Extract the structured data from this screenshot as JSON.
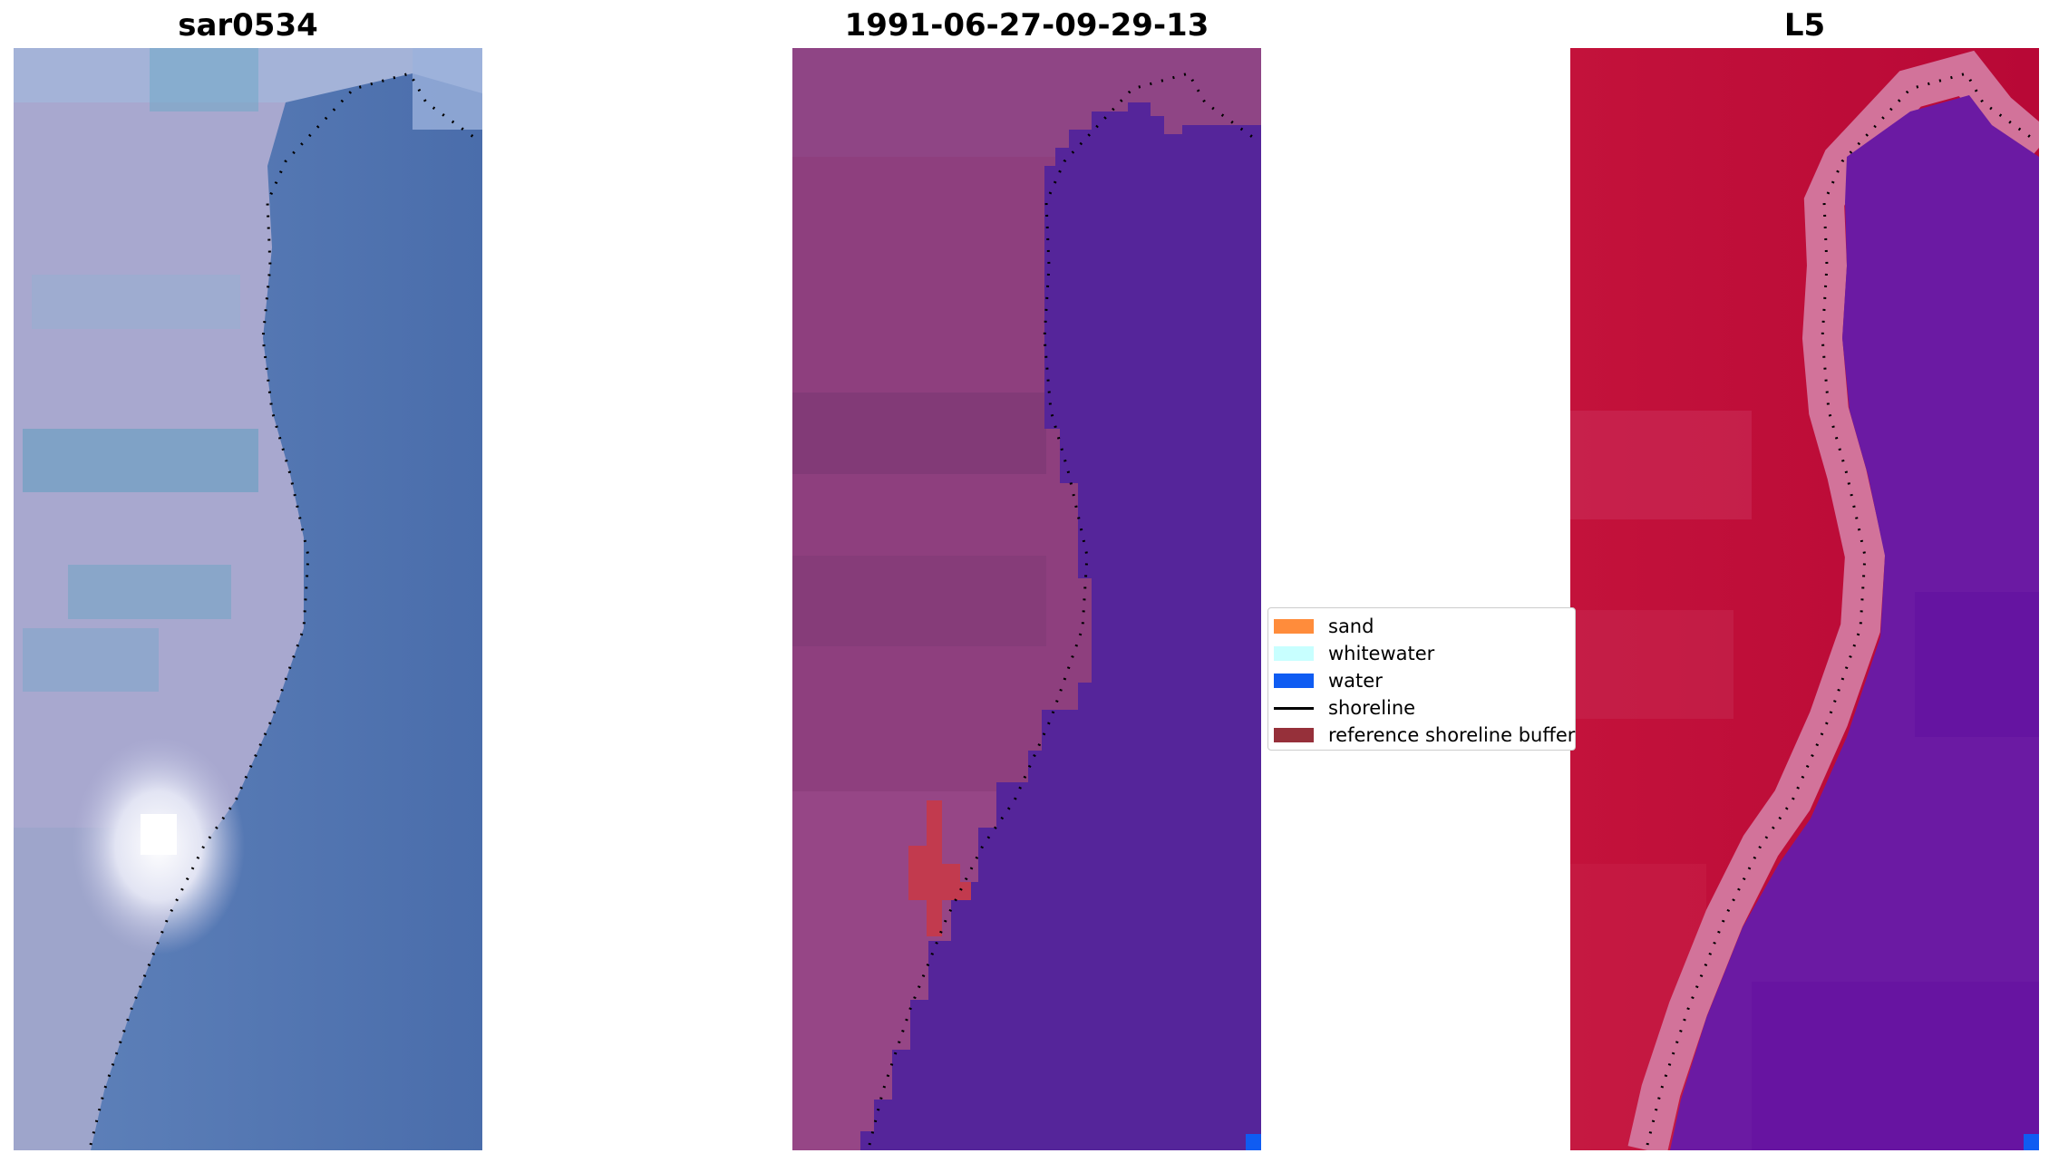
{
  "panels": [
    {
      "title": "sar0534"
    },
    {
      "title": "1991-06-27-09-29-13"
    },
    {
      "title": "L5"
    }
  ],
  "legend": {
    "items": [
      {
        "label": "sand",
        "color": "#ff8c3b",
        "kind": "patch"
      },
      {
        "label": "whitewater",
        "color": "#c8ffff",
        "kind": "patch"
      },
      {
        "label": "water",
        "color": "#0f5cf2",
        "kind": "patch"
      },
      {
        "label": "shoreline",
        "color": "#000000",
        "kind": "line"
      },
      {
        "label": "reference shoreline buffer",
        "color": "#96303a",
        "kind": "patch"
      }
    ]
  },
  "colors": {
    "sar_sand": "#a7a6cf",
    "sar_water": "#4f73ad",
    "mndwi_land": "#8e3f7e",
    "mndwi_water": "#55259a",
    "l5_land": "#c1113a",
    "l5_water": "#6b1aa3",
    "shoreline": "#000000"
  }
}
